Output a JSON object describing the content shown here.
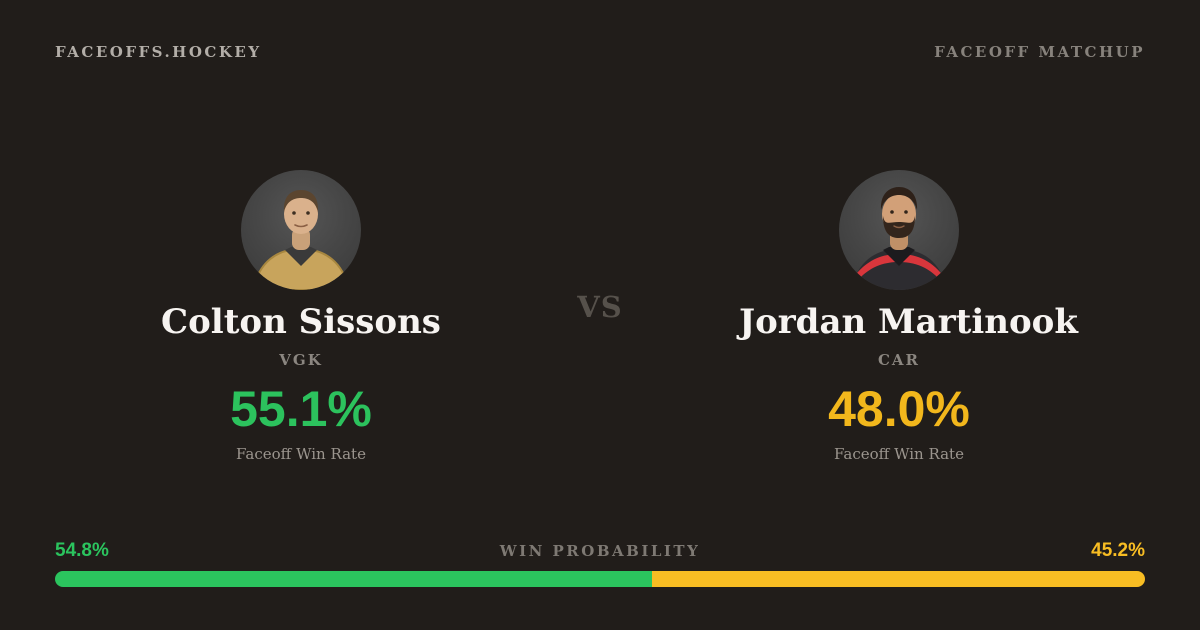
{
  "header": {
    "brand": "FACEOFFS.HOCKEY",
    "tag": "FACEOFF MATCHUP"
  },
  "matchup": {
    "vs_label": "VS",
    "left": {
      "name": "Colton Sissons",
      "team": "VGK",
      "rate": "55.1%",
      "rate_label": "Faceoff Win Rate",
      "accent": "#2cc25d",
      "photo": "player-headshot-gold-jersey"
    },
    "right": {
      "name": "Jordan Martinook",
      "team": "CAR",
      "rate": "48.0%",
      "rate_label": "Faceoff Win Rate",
      "accent": "#f2b71c",
      "photo": "player-headshot-black-red-jersey"
    }
  },
  "win_probability": {
    "label": "WIN PROBABILITY",
    "left": {
      "text": "54.8%",
      "value": 54.8,
      "color": "#2bc45e"
    },
    "right": {
      "text": "45.2%",
      "value": 45.2,
      "color": "#f8bd23"
    }
  },
  "colors": {
    "background": "#211d1a",
    "name_text": "#f7f4f1",
    "muted_text": "#8b8680"
  }
}
